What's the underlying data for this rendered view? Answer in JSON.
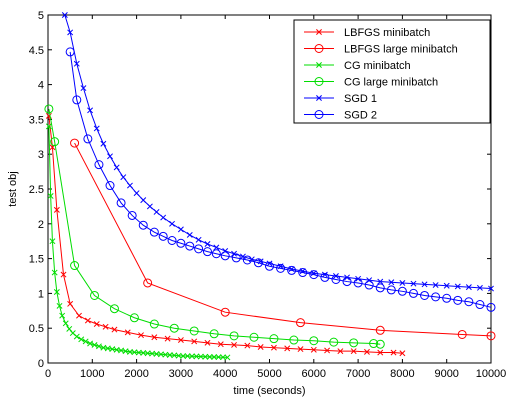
{
  "chart_data": {
    "type": "line",
    "xlabel": "time (seconds)",
    "ylabel": "test obj",
    "xlim": [
      0,
      10000
    ],
    "ylim": [
      0,
      5
    ],
    "xticks": [
      0,
      1000,
      2000,
      3000,
      4000,
      5000,
      6000,
      7000,
      8000,
      9000,
      10000
    ],
    "yticks": [
      0,
      0.5,
      1,
      1.5,
      2,
      2.5,
      3,
      3.5,
      4,
      4.5,
      5
    ],
    "grid": false,
    "legend_position": "top-right",
    "series": [
      {
        "name": "LBFGS minibatch",
        "color": "#ff0000",
        "marker": "x",
        "x": [
          20,
          100,
          200,
          350,
          500,
          700,
          900,
          1100,
          1300,
          1500,
          1800,
          2100,
          2400,
          2700,
          3000,
          3300,
          3600,
          3900,
          4200,
          4500,
          4800,
          5100,
          5400,
          5700,
          6000,
          6300,
          6600,
          6900,
          7200,
          7500,
          7800,
          8000
        ],
        "y": [
          3.55,
          3.1,
          2.2,
          1.27,
          0.85,
          0.68,
          0.61,
          0.56,
          0.52,
          0.48,
          0.44,
          0.4,
          0.37,
          0.35,
          0.33,
          0.31,
          0.29,
          0.27,
          0.26,
          0.25,
          0.23,
          0.22,
          0.21,
          0.2,
          0.19,
          0.18,
          0.17,
          0.17,
          0.16,
          0.15,
          0.15,
          0.14
        ]
      },
      {
        "name": "LBFGS large minibatch",
        "color": "#ff0000",
        "marker": "o",
        "x": [
          600,
          2250,
          4000,
          5700,
          7500,
          9350,
          10000
        ],
        "y": [
          3.16,
          1.15,
          0.73,
          0.58,
          0.47,
          0.41,
          0.39
        ]
      },
      {
        "name": "CG minibatch",
        "color": "#00dd00",
        "marker": "x",
        "x": [
          20,
          60,
          100,
          150,
          200,
          260,
          320,
          400,
          480,
          560,
          650,
          750,
          850,
          950,
          1050,
          1150,
          1250,
          1350,
          1450,
          1550,
          1650,
          1750,
          1850,
          1950,
          2050,
          2150,
          2250,
          2350,
          2450,
          2550,
          2650,
          2750,
          2850,
          2950,
          3050,
          3150,
          3250,
          3350,
          3450,
          3550,
          3650,
          3750,
          3850,
          3950,
          4050
        ],
        "y": [
          3.4,
          2.4,
          1.75,
          1.3,
          1.02,
          0.82,
          0.68,
          0.57,
          0.49,
          0.43,
          0.38,
          0.34,
          0.31,
          0.28,
          0.26,
          0.24,
          0.22,
          0.21,
          0.2,
          0.19,
          0.18,
          0.17,
          0.16,
          0.155,
          0.15,
          0.145,
          0.14,
          0.135,
          0.13,
          0.125,
          0.12,
          0.115,
          0.11,
          0.105,
          0.1,
          0.1,
          0.097,
          0.095,
          0.092,
          0.09,
          0.088,
          0.086,
          0.085,
          0.083,
          0.08
        ]
      },
      {
        "name": "CG large minibatch",
        "color": "#00dd00",
        "marker": "o",
        "x": [
          20,
          150,
          600,
          1050,
          1500,
          1950,
          2400,
          2850,
          3300,
          3750,
          4200,
          4650,
          5100,
          5550,
          6000,
          6450,
          6900,
          7350,
          7500
        ],
        "y": [
          3.65,
          3.18,
          1.4,
          0.97,
          0.78,
          0.65,
          0.56,
          0.5,
          0.46,
          0.42,
          0.39,
          0.37,
          0.35,
          0.33,
          0.32,
          0.3,
          0.29,
          0.28,
          0.27
        ]
      },
      {
        "name": "SGD 1",
        "color": "#0000ff",
        "marker": "x",
        "x": [
          380,
          500,
          650,
          800,
          950,
          1100,
          1250,
          1400,
          1550,
          1700,
          1850,
          2000,
          2150,
          2300,
          2450,
          2600,
          2800,
          3000,
          3200,
          3400,
          3600,
          3800,
          4000,
          4200,
          4400,
          4600,
          4800,
          5000,
          5250,
          5500,
          5750,
          6000,
          6250,
          6500,
          6750,
          7000,
          7250,
          7500,
          7750,
          8000,
          8250,
          8500,
          8750,
          9000,
          9250,
          9500,
          9750,
          10000
        ],
        "y": [
          5.0,
          4.75,
          4.3,
          3.95,
          3.63,
          3.37,
          3.15,
          2.97,
          2.81,
          2.67,
          2.55,
          2.44,
          2.34,
          2.25,
          2.17,
          2.09,
          2.0,
          1.92,
          1.84,
          1.77,
          1.71,
          1.66,
          1.61,
          1.57,
          1.53,
          1.49,
          1.46,
          1.43,
          1.39,
          1.35,
          1.32,
          1.29,
          1.27,
          1.25,
          1.23,
          1.21,
          1.19,
          1.17,
          1.16,
          1.15,
          1.14,
          1.13,
          1.12,
          1.11,
          1.1,
          1.09,
          1.08,
          1.07
        ]
      },
      {
        "name": "SGD 2",
        "color": "#0000ff",
        "marker": "o",
        "x": [
          500,
          650,
          900,
          1150,
          1400,
          1650,
          1900,
          2150,
          2400,
          2600,
          2800,
          3000,
          3200,
          3400,
          3600,
          3800,
          4000,
          4250,
          4500,
          4750,
          5000,
          5250,
          5500,
          5750,
          6000,
          6250,
          6500,
          6750,
          7000,
          7250,
          7500,
          7750,
          8000,
          8250,
          8500,
          8750,
          9000,
          9250,
          9500,
          9750,
          10000
        ],
        "y": [
          4.47,
          3.78,
          3.22,
          2.85,
          2.55,
          2.3,
          2.12,
          1.98,
          1.88,
          1.82,
          1.76,
          1.72,
          1.68,
          1.64,
          1.6,
          1.57,
          1.54,
          1.51,
          1.48,
          1.44,
          1.39,
          1.36,
          1.33,
          1.3,
          1.27,
          1.23,
          1.2,
          1.17,
          1.15,
          1.12,
          1.08,
          1.05,
          1.03,
          1.0,
          0.97,
          0.95,
          0.93,
          0.9,
          0.88,
          0.84,
          0.8
        ]
      }
    ]
  }
}
